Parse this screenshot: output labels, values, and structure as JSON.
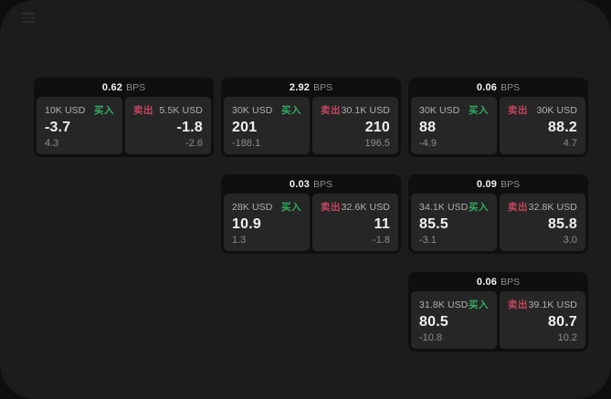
{
  "labels": {
    "bps_unit": "BPS",
    "buy": "买入",
    "sell": "卖出"
  },
  "colors": {
    "buy_green": "#2fae5f",
    "sell_red": "#c3455f",
    "page_bg": "#1c1c1c",
    "card_bg": "#0f0f0f",
    "quote_bg": "#262626"
  },
  "cards": [
    {
      "bps": "0.62",
      "col": 1,
      "row": 1,
      "buy": {
        "amount": "10K USD",
        "price": "-3.7",
        "delta": "4.3"
      },
      "sell": {
        "amount": "5.5K USD",
        "price": "-1.8",
        "delta": "-2.6"
      }
    },
    {
      "bps": "2.92",
      "col": 2,
      "row": 1,
      "buy": {
        "amount": "30K USD",
        "price": "201",
        "delta": "-188.1"
      },
      "sell": {
        "amount": "30.1K USD",
        "price": "210",
        "delta": "196.5"
      }
    },
    {
      "bps": "0.06",
      "col": 3,
      "row": 1,
      "buy": {
        "amount": "30K USD",
        "price": "88",
        "delta": "-4.9"
      },
      "sell": {
        "amount": "30K USD",
        "price": "88.2",
        "delta": "4.7"
      }
    },
    {
      "bps": "0.03",
      "col": 2,
      "row": 2,
      "buy": {
        "amount": "28K USD",
        "price": "10.9",
        "delta": "1.3"
      },
      "sell": {
        "amount": "32.6K USD",
        "price": "11",
        "delta": "-1.8"
      }
    },
    {
      "bps": "0.09",
      "col": 3,
      "row": 2,
      "buy": {
        "amount": "34.1K USD",
        "price": "85.5",
        "delta": "-3.1"
      },
      "sell": {
        "amount": "32.8K USD",
        "price": "85.8",
        "delta": "3.0"
      }
    },
    {
      "bps": "0.06",
      "col": 3,
      "row": 3,
      "buy": {
        "amount": "31.8K USD",
        "price": "80.5",
        "delta": "-10.8"
      },
      "sell": {
        "amount": "39.1K USD",
        "price": "80.7",
        "delta": "10.2"
      }
    }
  ]
}
